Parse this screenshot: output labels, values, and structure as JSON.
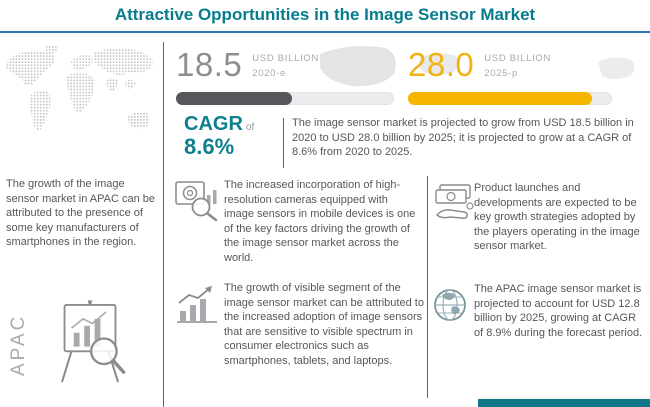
{
  "title": "Attractive Opportunities in the Image Sensor Market",
  "chart_data": {
    "type": "bar",
    "categories": [
      "2020-e",
      "2025-p"
    ],
    "values": [
      18.5,
      28.0
    ],
    "unit": "USD BILLION",
    "title": "Attractive Opportunities in the Image Sensor Market",
    "cagr_pct": 8.6,
    "annotations": [
      "APAC market projected at USD 12.8 billion by 2025 at CAGR of 8.9%"
    ]
  },
  "left_panel": {
    "paragraph": "The growth of the image sensor market in APAC can be attributed to the presence of some key manufacturers of smartphones in the region.",
    "region_label": "APAC"
  },
  "stats": {
    "current": {
      "value": "18.5",
      "unit": "USD BILLION",
      "year": "2020-e",
      "fill_pct": 53
    },
    "projected": {
      "value": "28.0",
      "unit": "USD BILLION",
      "year": "2025-p",
      "fill_pct": 90
    },
    "cagr": {
      "label": "CAGR",
      "connector": "of",
      "value": "8.6%"
    },
    "summary": "The image sensor market is projected to grow from USD 18.5 billion in 2020 to USD 28.0 billion by 2025; it is projected to grow at a CAGR of 8.6% from 2020 to 2025."
  },
  "insights": [
    {
      "icon": "camera-magnifier-icon",
      "text": "The increased incorporation of high-resolution cameras equipped with image sensors in mobile devices is one of the key factors driving the growth of the image sensor market across the world."
    },
    {
      "icon": "growth-chart-icon",
      "text": "The growth of visible segment of the image sensor market can be attributed to the increased adoption of image sensors that are sensitive to visible spectrum in consumer electronics such as smartphones, tablets, and laptops."
    },
    {
      "icon": "money-hand-icon",
      "text": "Product launches and developments are expected to be key growth strategies adopted by the players operating in the image sensor market."
    },
    {
      "icon": "globe-icon",
      "text": "The APAC image sensor market is projected to account for USD 12.8 billion by 2025, growing at CAGR of 8.9% during the forecast period."
    }
  ],
  "colors": {
    "teal": "#0F7F8E",
    "blue_rule": "#2E74B6",
    "gold": "#F2B211",
    "bar_dark": "#55575A",
    "body_text": "#55575B"
  }
}
